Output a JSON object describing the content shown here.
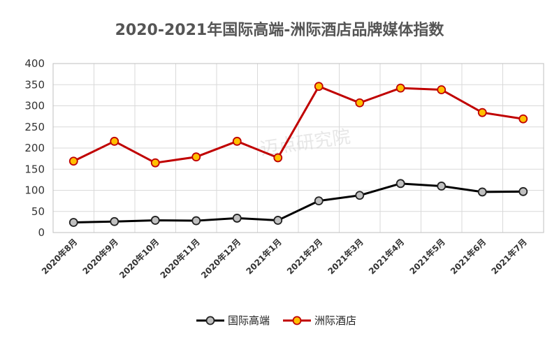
{
  "chart_data": {
    "type": "line",
    "title": "2020-2021年国际高端-洲际酒店品牌媒体指数",
    "categories": [
      "2020年8月",
      "2020年9月",
      "2020年10月",
      "2020年11月",
      "2020年12月",
      "2021年1月",
      "2021年2月",
      "2021年3月",
      "2021年4月",
      "2021年5月",
      "2021年6月",
      "2021年7月"
    ],
    "ylim": [
      0,
      400
    ],
    "yticks": [
      0,
      50,
      100,
      150,
      200,
      250,
      300,
      350,
      400
    ],
    "grid": true,
    "legend_position": "bottom",
    "series": [
      {
        "name": "国际高端",
        "values": [
          24,
          26,
          29,
          28,
          34,
          29,
          75,
          88,
          116,
          110,
          96,
          97
        ],
        "line_color": "#000000",
        "marker_fill": "#c0c0c0",
        "marker_stroke": "#222222"
      },
      {
        "name": "洲际酒店",
        "values": [
          169,
          216,
          165,
          179,
          216,
          177,
          346,
          307,
          342,
          338,
          284,
          269
        ],
        "line_color": "#c00000",
        "marker_fill": "#ffc000",
        "marker_stroke": "#c00000"
      }
    ]
  },
  "watermark": {
    "text": "迈点研究院"
  }
}
